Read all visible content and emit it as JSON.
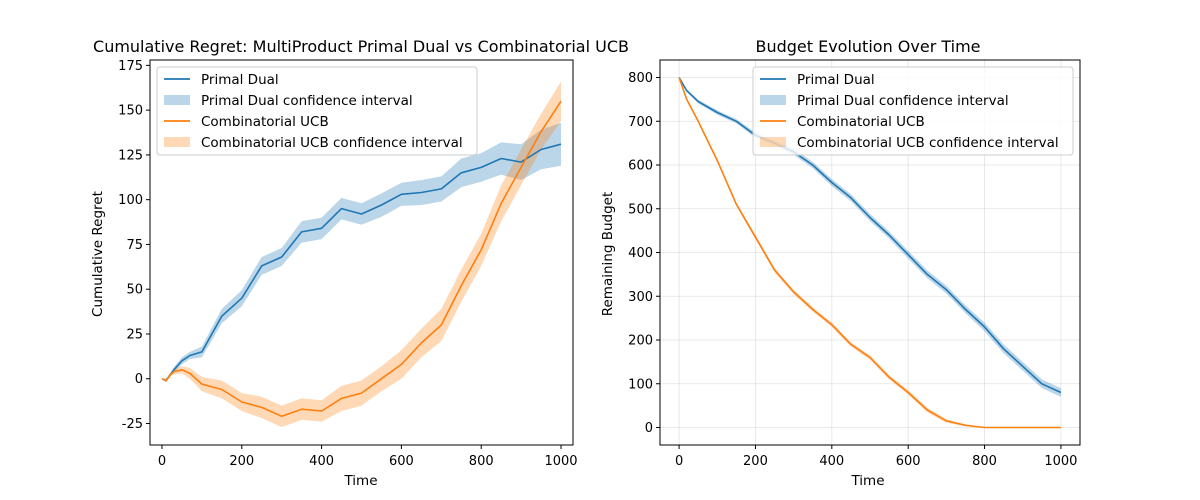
{
  "chart_data": [
    {
      "type": "line",
      "title": "Cumulative Regret: MultiProduct Primal Dual vs Combinatorial UCB",
      "xlabel": "Time",
      "ylabel": "Cumulative Regret",
      "xlim": [
        -30,
        1030
      ],
      "ylim": [
        -37,
        178
      ],
      "xticks": [
        0,
        200,
        400,
        600,
        800,
        1000
      ],
      "yticks": [
        -25,
        0,
        25,
        50,
        75,
        100,
        125,
        150,
        175
      ],
      "grid": false,
      "legend_position": "upper left",
      "legend": [
        "Primal Dual",
        "Primal Dual confidence interval",
        "Combinatorial UCB",
        "Combinatorial UCB confidence interval"
      ],
      "series": [
        {
          "name": "Primal Dual",
          "color": "#1f77b4",
          "x": [
            0,
            10,
            20,
            30,
            50,
            70,
            100,
            150,
            200,
            250,
            300,
            350,
            400,
            450,
            500,
            550,
            600,
            650,
            700,
            750,
            800,
            850,
            900,
            950,
            1000
          ],
          "y": [
            0,
            -1,
            2,
            5,
            10,
            13,
            15,
            35,
            45,
            63,
            68,
            82,
            84,
            95,
            92,
            97,
            103,
            104,
            106,
            115,
            118,
            123,
            121,
            128,
            131
          ],
          "band": [
            0,
            1,
            1,
            1.5,
            2,
            2,
            3,
            4,
            4.5,
            5,
            5,
            6,
            6,
            6,
            6,
            6.5,
            6.5,
            7,
            7,
            8,
            8,
            9,
            10,
            11,
            12
          ]
        },
        {
          "name": "Combinatorial UCB",
          "color": "#ff7f0e",
          "x": [
            0,
            10,
            20,
            30,
            50,
            70,
            100,
            150,
            200,
            250,
            300,
            350,
            400,
            450,
            500,
            550,
            600,
            650,
            700,
            750,
            800,
            850,
            900,
            950,
            1000
          ],
          "y": [
            0,
            -1,
            2,
            4,
            5,
            3,
            -3,
            -6,
            -13,
            -16,
            -21,
            -17,
            -18,
            -11,
            -8,
            0,
            8,
            20,
            30,
            52,
            72,
            98,
            118,
            138,
            155
          ],
          "band": [
            0,
            1,
            1,
            1.5,
            2,
            3,
            4,
            5,
            5,
            6,
            6,
            6,
            6,
            7,
            7,
            7,
            8,
            8,
            9,
            9,
            9,
            10,
            10,
            10,
            11
          ]
        }
      ]
    },
    {
      "type": "line",
      "title": "Budget Evolution Over Time",
      "xlabel": "Time",
      "ylabel": "Remaining Budget",
      "xlim": [
        -50,
        1050
      ],
      "ylim": [
        -40,
        840
      ],
      "xticks": [
        0,
        200,
        400,
        600,
        800,
        1000
      ],
      "yticks": [
        0,
        100,
        200,
        300,
        400,
        500,
        600,
        700,
        800
      ],
      "grid": true,
      "legend_position": "upper right",
      "legend": [
        "Primal Dual",
        "Primal Dual confidence interval",
        "Combinatorial UCB",
        "Combinatorial UCB confidence interval"
      ],
      "series": [
        {
          "name": "Primal Dual",
          "color": "#1f77b4",
          "x": [
            0,
            20,
            50,
            100,
            150,
            200,
            250,
            300,
            350,
            400,
            450,
            500,
            550,
            600,
            650,
            700,
            750,
            800,
            850,
            900,
            950,
            1000
          ],
          "y": [
            800,
            770,
            745,
            720,
            700,
            668,
            650,
            630,
            600,
            560,
            525,
            480,
            440,
            395,
            350,
            315,
            270,
            230,
            180,
            140,
            100,
            80
          ],
          "band": [
            0,
            3,
            4,
            5,
            5,
            6,
            6,
            7,
            7,
            8,
            8,
            8,
            8,
            9,
            9,
            9,
            9,
            10,
            10,
            10,
            10,
            10
          ]
        },
        {
          "name": "Combinatorial UCB",
          "color": "#ff7f0e",
          "x": [
            0,
            20,
            50,
            100,
            150,
            200,
            250,
            300,
            350,
            400,
            450,
            500,
            550,
            600,
            650,
            700,
            750,
            800,
            850,
            900,
            950,
            1000
          ],
          "y": [
            800,
            750,
            700,
            610,
            510,
            435,
            360,
            310,
            270,
            235,
            190,
            160,
            115,
            80,
            40,
            15,
            5,
            0,
            0,
            0,
            0,
            0
          ],
          "band": [
            0,
            2,
            3,
            4,
            4,
            5,
            5,
            5,
            5,
            5,
            5,
            5,
            5,
            5,
            5,
            4,
            2,
            0,
            0,
            0,
            0,
            0
          ]
        }
      ]
    }
  ]
}
